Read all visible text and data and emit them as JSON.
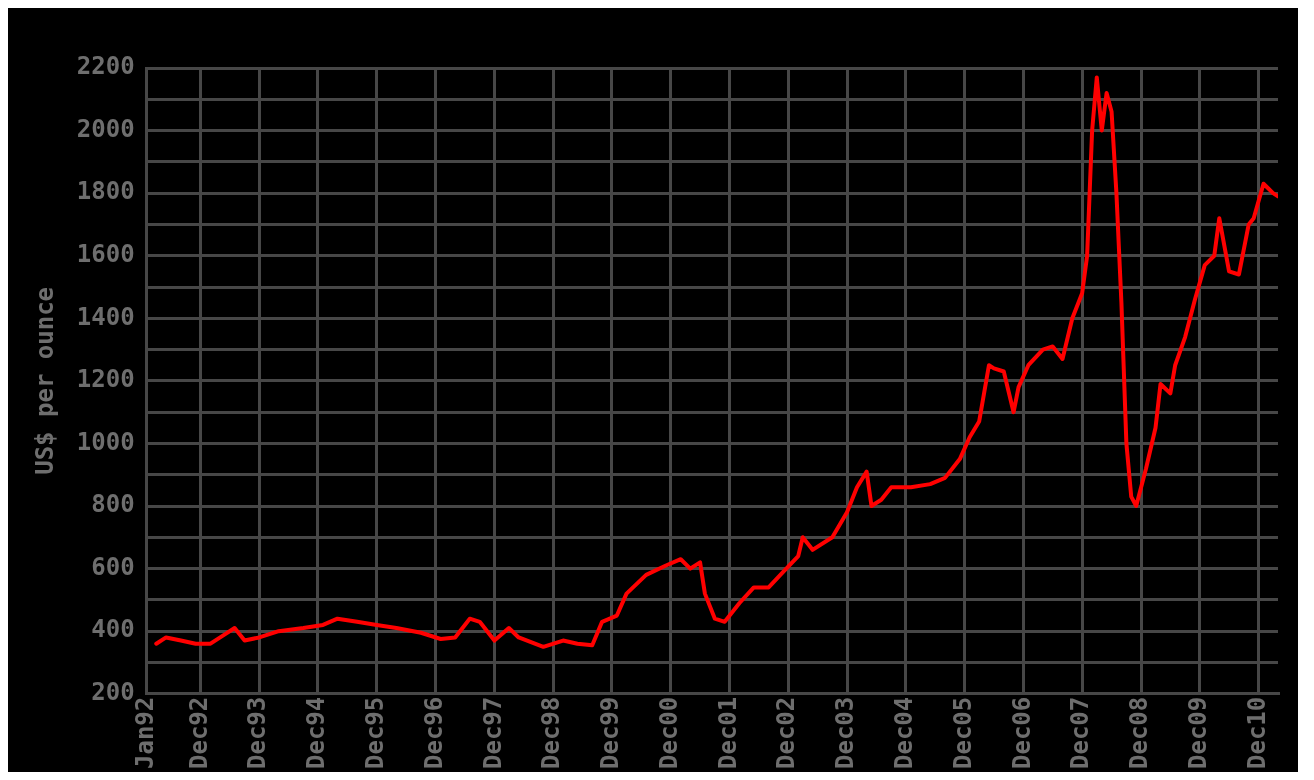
{
  "chart_data": {
    "type": "line",
    "ylabel": "US$ per ounce",
    "x": [
      "1992-03",
      "1992-05",
      "1992-08",
      "1992-11",
      "1993-02",
      "1993-05",
      "1993-07",
      "1993-09",
      "1993-12",
      "1994-04",
      "1994-09",
      "1995-01",
      "1995-04",
      "1995-08",
      "1995-12",
      "1996-04",
      "1996-09",
      "1997-01",
      "1997-04",
      "1997-07",
      "1997-09",
      "1997-12",
      "1998-03",
      "1998-05",
      "1998-10",
      "1999-02",
      "1999-05",
      "1999-08",
      "1999-10",
      "2000-01",
      "2000-03",
      "2000-07",
      "2000-11",
      "2001-02",
      "2001-04",
      "2001-06",
      "2001-07",
      "2001-09",
      "2001-11",
      "2002-02",
      "2002-05",
      "2002-08",
      "2002-11",
      "2003-02",
      "2003-03",
      "2003-05",
      "2003-09",
      "2003-12",
      "2004-02",
      "2004-04",
      "2004-05",
      "2004-07",
      "2004-09",
      "2005-01",
      "2005-05",
      "2005-08",
      "2005-11",
      "2006-01",
      "2006-03",
      "2006-05",
      "2006-06",
      "2006-08",
      "2006-10",
      "2006-11",
      "2007-01",
      "2007-04",
      "2007-06",
      "2007-08",
      "2007-10",
      "2007-12",
      "2008-01",
      "2008-02",
      "2008-03",
      "2008-04",
      "2008-05",
      "2008-06",
      "2008-07",
      "2008-08",
      "2008-09",
      "2008-10",
      "2008-11",
      "2009-01",
      "2009-03",
      "2009-04",
      "2009-06",
      "2009-07",
      "2009-09",
      "2009-11",
      "2010-01",
      "2010-03",
      "2010-04",
      "2010-06",
      "2010-08",
      "2010-10",
      "2010-11",
      "2011-01",
      "2011-03",
      "2011-04"
    ],
    "series": [
      {
        "color": "#ff0000",
        "values": [
          360,
          380,
          370,
          360,
          360,
          390,
          410,
          370,
          380,
          400,
          410,
          420,
          440,
          430,
          420,
          410,
          395,
          375,
          380,
          440,
          430,
          370,
          410,
          380,
          350,
          370,
          360,
          355,
          430,
          450,
          520,
          580,
          610,
          630,
          600,
          620,
          520,
          440,
          430,
          490,
          540,
          540,
          590,
          640,
          700,
          660,
          700,
          780,
          860,
          910,
          800,
          820,
          860,
          860,
          870,
          890,
          950,
          1020,
          1070,
          1250,
          1240,
          1230,
          1100,
          1180,
          1250,
          1300,
          1310,
          1270,
          1400,
          1480,
          1600,
          2000,
          2170,
          2000,
          2120,
          2060,
          1800,
          1450,
          1000,
          830,
          800,
          920,
          1050,
          1190,
          1160,
          1250,
          1340,
          1460,
          1570,
          1600,
          1720,
          1550,
          1540,
          1700,
          1720,
          1830,
          1800,
          1790
        ]
      }
    ],
    "xlim": [
      "1992-01",
      "2011-04"
    ],
    "xticks": [
      {
        "value": "1992-01",
        "label": "Jan92"
      },
      {
        "value": "1992-12",
        "label": "Dec92"
      },
      {
        "value": "1993-12",
        "label": "Dec93"
      },
      {
        "value": "1994-12",
        "label": "Dec94"
      },
      {
        "value": "1995-12",
        "label": "Dec95"
      },
      {
        "value": "1996-12",
        "label": "Dec96"
      },
      {
        "value": "1997-12",
        "label": "Dec97"
      },
      {
        "value": "1998-12",
        "label": "Dec98"
      },
      {
        "value": "1999-12",
        "label": "Dec99"
      },
      {
        "value": "2000-12",
        "label": "Dec00"
      },
      {
        "value": "2001-12",
        "label": "Dec01"
      },
      {
        "value": "2002-12",
        "label": "Dec02"
      },
      {
        "value": "2003-12",
        "label": "Dec03"
      },
      {
        "value": "2004-12",
        "label": "Dec04"
      },
      {
        "value": "2005-12",
        "label": "Dec05"
      },
      {
        "value": "2006-12",
        "label": "Dec06"
      },
      {
        "value": "2007-12",
        "label": "Dec07"
      },
      {
        "value": "2008-12",
        "label": "Dec08"
      },
      {
        "value": "2009-12",
        "label": "Dec09"
      },
      {
        "value": "2010-12",
        "label": "Dec10"
      }
    ],
    "ylim": [
      200,
      2200
    ],
    "yticks": [
      200,
      {
        "value": 300,
        "label": null
      },
      400,
      {
        "value": 500,
        "label": null
      },
      600,
      {
        "value": 700,
        "label": null
      },
      800,
      {
        "value": 900,
        "label": null
      },
      1000,
      {
        "value": 1100,
        "label": null
      },
      1200,
      {
        "value": 1300,
        "label": null
      },
      1400,
      {
        "value": 1500,
        "label": null
      },
      1600,
      {
        "value": 1700,
        "label": null
      },
      1800,
      {
        "value": 1900,
        "label": null
      },
      2000,
      {
        "value": 2100,
        "label": null
      },
      2200
    ],
    "grid": true,
    "legend": false,
    "marker": "none",
    "line_style": "solid"
  }
}
